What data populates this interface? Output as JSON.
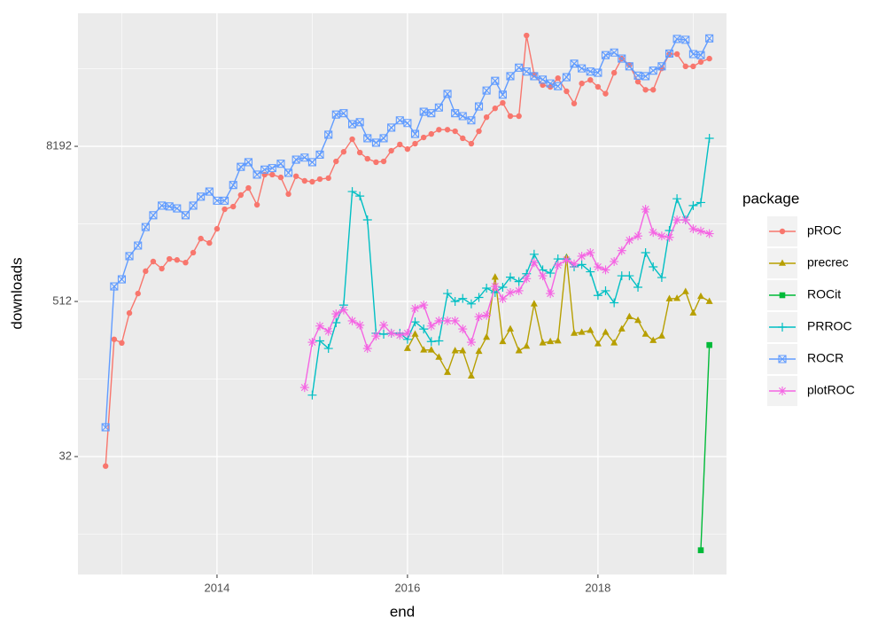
{
  "chart_data": {
    "type": "line",
    "x_label": "end",
    "y_label": "downloads",
    "legend_title": "package",
    "y_scale": "log2",
    "grid": true,
    "legend_position": "right",
    "xlim": [
      2012.54,
      2019.35
    ],
    "xticks": [
      2014,
      2016,
      2018
    ],
    "minor_xticks": [
      2013,
      2015,
      2017,
      2019
    ],
    "ylim": [
      3.89,
      88300
    ],
    "yticks": [
      32,
      512,
      8192
    ],
    "minor_yticks": [
      8,
      128,
      2048,
      32768
    ],
    "x": [
      2012.83,
      2012.92,
      2013.0,
      2013.08,
      2013.17,
      2013.25,
      2013.33,
      2013.42,
      2013.5,
      2013.58,
      2013.67,
      2013.75,
      2013.83,
      2013.92,
      2014.0,
      2014.08,
      2014.17,
      2014.25,
      2014.33,
      2014.42,
      2014.5,
      2014.58,
      2014.67,
      2014.75,
      2014.83,
      2014.92,
      2015.0,
      2015.08,
      2015.17,
      2015.25,
      2015.33,
      2015.42,
      2015.5,
      2015.58,
      2015.67,
      2015.75,
      2015.83,
      2015.92,
      2016.0,
      2016.08,
      2016.17,
      2016.25,
      2016.33,
      2016.42,
      2016.5,
      2016.58,
      2016.67,
      2016.75,
      2016.83,
      2016.92,
      2017.0,
      2017.08,
      2017.17,
      2017.25,
      2017.33,
      2017.42,
      2017.5,
      2017.58,
      2017.67,
      2017.75,
      2017.83,
      2017.92,
      2018.0,
      2018.08,
      2018.17,
      2018.25,
      2018.33,
      2018.42,
      2018.5,
      2018.58,
      2018.67,
      2018.75,
      2018.83,
      2018.92,
      2019.0,
      2019.08,
      2019.17
    ],
    "series": [
      {
        "name": "pROC",
        "color": "#F8766D",
        "shape": "circle",
        "values": [
          27,
          260,
          244,
          416,
          590,
          880,
          1045,
          920,
          1095,
          1075,
          1025,
          1225,
          1575,
          1455,
          1875,
          2660,
          2790,
          3430,
          3890,
          2880,
          4940,
          4940,
          4700,
          3490,
          4800,
          4420,
          4350,
          4560,
          4640,
          6260,
          7430,
          9300,
          7330,
          6560,
          6170,
          6260,
          7570,
          8470,
          7800,
          8590,
          9600,
          10220,
          11030,
          11030,
          10730,
          9460,
          8590,
          10730,
          13790,
          16150,
          17800,
          14050,
          14050,
          59400,
          29500,
          24500,
          23700,
          27700,
          21900,
          17600,
          25200,
          26800,
          23700,
          21000,
          30500,
          39300,
          35100,
          26000,
          22500,
          22500,
          33000,
          42600,
          42600,
          34200,
          34200,
          37000,
          39300
        ]
      },
      {
        "name": "precrec",
        "color": "#B79F00",
        "shape": "triangle",
        "values": [
          null,
          null,
          null,
          null,
          null,
          null,
          null,
          null,
          null,
          null,
          null,
          null,
          null,
          null,
          null,
          null,
          null,
          null,
          null,
          null,
          null,
          null,
          null,
          null,
          null,
          null,
          null,
          null,
          null,
          null,
          null,
          null,
          null,
          null,
          null,
          null,
          null,
          null,
          221,
          285,
          215,
          215,
          189,
          144,
          212,
          212,
          135,
          210,
          270,
          790,
          250,
          313,
          212,
          230,
          490,
          244,
          250,
          253,
          1130,
          290,
          295,
          305,
          240,
          295,
          244,
          313,
          390,
          365,
          285,
          255,
          276,
          537,
          540,
          610,
          416,
          560,
          512
        ]
      },
      {
        "name": "ROCit",
        "color": "#00BA38",
        "shape": "square",
        "values": [
          null,
          null,
          null,
          null,
          null,
          null,
          null,
          null,
          null,
          null,
          null,
          null,
          null,
          null,
          null,
          null,
          null,
          null,
          null,
          null,
          null,
          null,
          null,
          null,
          null,
          null,
          null,
          null,
          null,
          null,
          null,
          null,
          null,
          null,
          null,
          null,
          null,
          null,
          null,
          null,
          null,
          null,
          null,
          null,
          null,
          null,
          null,
          null,
          null,
          null,
          null,
          null,
          null,
          null,
          null,
          null,
          null,
          null,
          null,
          null,
          null,
          null,
          null,
          null,
          null,
          null,
          null,
          null,
          null,
          null,
          null,
          null,
          null,
          null,
          null,
          6,
          235
        ]
      },
      {
        "name": "PRROC",
        "color": "#00BFC4",
        "shape": "plus",
        "values": [
          null,
          null,
          null,
          null,
          null,
          null,
          null,
          null,
          null,
          null,
          null,
          null,
          null,
          null,
          null,
          null,
          null,
          null,
          null,
          null,
          null,
          null,
          null,
          null,
          null,
          null,
          96,
          253,
          221,
          350,
          480,
          3650,
          3370,
          2200,
          290,
          285,
          290,
          290,
          260,
          355,
          313,
          250,
          253,
          590,
          512,
          540,
          490,
          550,
          650,
          600,
          660,
          790,
          730,
          840,
          1190,
          900,
          850,
          1095,
          1095,
          950,
          990,
          870,
          570,
          620,
          500,
          810,
          810,
          660,
          1225,
          950,
          785,
          1820,
          3210,
          2200,
          2840,
          3000,
          9460
        ]
      },
      {
        "name": "ROCR",
        "color": "#619CFF",
        "shape": "square-cross",
        "values": [
          54,
          670,
          760,
          1150,
          1390,
          1935,
          2390,
          2840,
          2800,
          2700,
          2390,
          2840,
          3330,
          3650,
          3100,
          3100,
          4100,
          5680,
          6170,
          4940,
          5400,
          5550,
          6000,
          5100,
          6460,
          6700,
          6170,
          7060,
          10080,
          14470,
          14800,
          12170,
          12620,
          9460,
          8750,
          9460,
          11440,
          13030,
          12430,
          10220,
          15200,
          14800,
          16400,
          20900,
          14800,
          14050,
          13030,
          16700,
          22200,
          26400,
          20600,
          28700,
          33400,
          31200,
          28700,
          27000,
          25200,
          24000,
          28200,
          35900,
          33000,
          31200,
          30500,
          41800,
          43800,
          39300,
          34200,
          29000,
          28700,
          31700,
          34200,
          43000,
          55800,
          55000,
          42600,
          41800,
          56400
        ]
      },
      {
        "name": "plotROC",
        "color": "#F564E3",
        "shape": "asterisk",
        "values": [
          null,
          null,
          null,
          null,
          null,
          null,
          null,
          null,
          null,
          null,
          null,
          null,
          null,
          null,
          null,
          null,
          null,
          null,
          null,
          null,
          null,
          null,
          null,
          null,
          null,
          110,
          247,
          330,
          300,
          410,
          440,
          362,
          335,
          221,
          276,
          335,
          290,
          280,
          290,
          452,
          480,
          330,
          362,
          362,
          362,
          313,
          247,
          390,
          400,
          670,
          537,
          600,
          620,
          770,
          1024,
          810,
          590,
          980,
          1075,
          1000,
          1150,
          1225,
          950,
          900,
          1045,
          1270,
          1530,
          1650,
          2660,
          1760,
          1650,
          1610,
          2200,
          2200,
          1875,
          1800,
          1720
        ]
      }
    ]
  }
}
